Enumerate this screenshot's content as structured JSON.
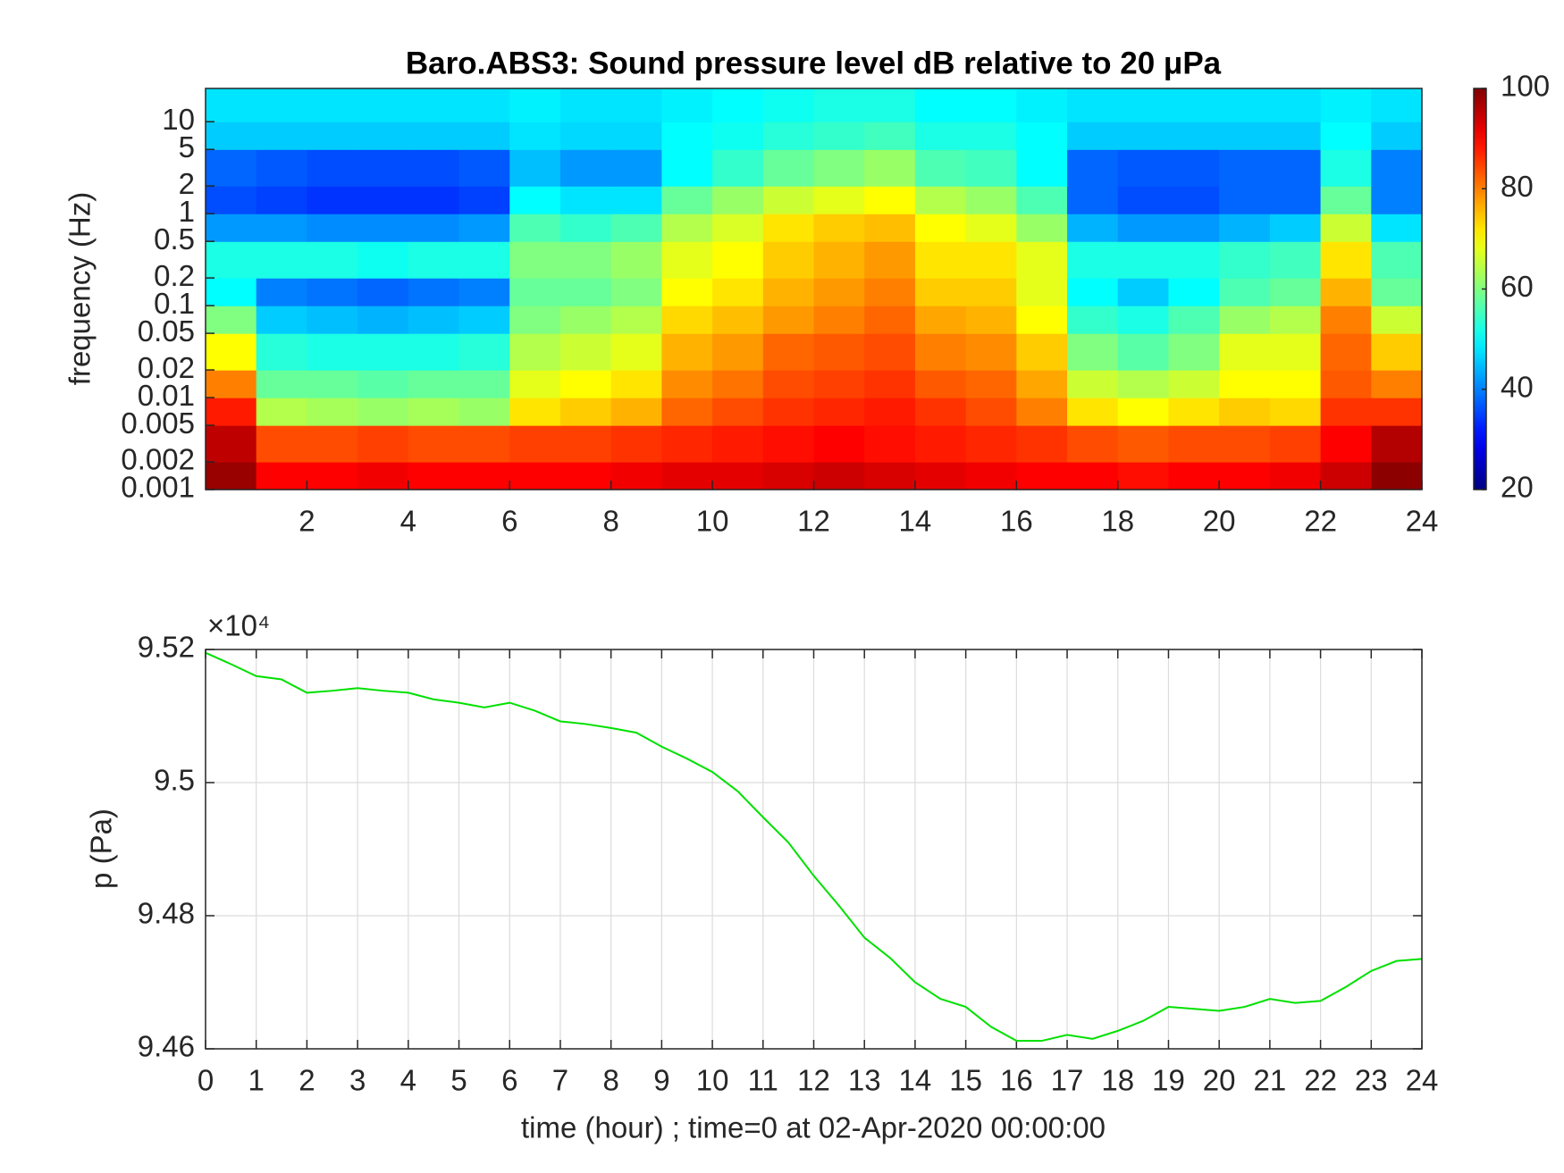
{
  "chart_data": [
    {
      "type": "heatmap",
      "title": "Baro.ABS3: Sound pressure level dB relative to 20 μPa",
      "ylabel": "frequency (Hz)",
      "xlim": [
        0,
        24
      ],
      "xticks": [
        2,
        4,
        6,
        8,
        10,
        12,
        14,
        16,
        18,
        20,
        22,
        24
      ],
      "ylim": [
        0.001,
        23
      ],
      "log_y": true,
      "yticks": [
        0.001,
        0.002,
        0.005,
        0.01,
        0.02,
        0.05,
        0.1,
        0.2,
        0.5,
        1,
        2,
        5,
        10
      ],
      "colormap": "jet",
      "clim": [
        20,
        100
      ],
      "colorbar_ticks": [
        20,
        40,
        60,
        80,
        100
      ],
      "x_bins": [
        0,
        1,
        2,
        3,
        4,
        5,
        6,
        7,
        8,
        9,
        10,
        11,
        12,
        13,
        14,
        15,
        16,
        17,
        18,
        19,
        20,
        21,
        22,
        23,
        24
      ],
      "y_bins": [
        0.001,
        0.002,
        0.005,
        0.01,
        0.02,
        0.05,
        0.1,
        0.2,
        0.5,
        1,
        2,
        5,
        10,
        23
      ],
      "z": [
        [
          98,
          90,
          90,
          91,
          90,
          90,
          90,
          90,
          91,
          92,
          92,
          93,
          94,
          93,
          92,
          91,
          90,
          90,
          89,
          90,
          90,
          91,
          94,
          99
        ],
        [
          95,
          84,
          84,
          85,
          84,
          84,
          85,
          85,
          86,
          87,
          88,
          89,
          90,
          89,
          88,
          87,
          86,
          84,
          83,
          84,
          84,
          85,
          90,
          96
        ],
        [
          88,
          64,
          63,
          62,
          63,
          62,
          72,
          74,
          76,
          82,
          84,
          86,
          87,
          88,
          86,
          84,
          80,
          72,
          70,
          72,
          74,
          73,
          86,
          86
        ],
        [
          80,
          58,
          58,
          57,
          58,
          58,
          68,
          70,
          72,
          79,
          81,
          84,
          85,
          86,
          83,
          82,
          77,
          66,
          64,
          66,
          70,
          70,
          83,
          80
        ],
        [
          70,
          53,
          52,
          52,
          52,
          53,
          64,
          66,
          68,
          76,
          78,
          82,
          83,
          84,
          80,
          79,
          74,
          60,
          57,
          60,
          68,
          68,
          82,
          74
        ],
        [
          60,
          46,
          45,
          44,
          45,
          46,
          60,
          62,
          64,
          73,
          75,
          78,
          80,
          82,
          77,
          76,
          70,
          54,
          52,
          56,
          62,
          64,
          80,
          66
        ],
        [
          50,
          40,
          39,
          38,
          39,
          40,
          58,
          58,
          60,
          70,
          72,
          76,
          78,
          80,
          74,
          74,
          68,
          50,
          46,
          50,
          56,
          58,
          76,
          58
        ],
        [
          52,
          52,
          52,
          51,
          52,
          52,
          60,
          60,
          62,
          68,
          70,
          74,
          76,
          78,
          72,
          72,
          68,
          52,
          52,
          52,
          54,
          55,
          72,
          56
        ],
        [
          42,
          42,
          41,
          41,
          41,
          42,
          56,
          54,
          56,
          64,
          67,
          72,
          74,
          75,
          70,
          68,
          62,
          44,
          42,
          42,
          44,
          46,
          66,
          48
        ],
        [
          36,
          35,
          34,
          34,
          34,
          35,
          50,
          48,
          48,
          58,
          62,
          66,
          68,
          70,
          64,
          62,
          56,
          38,
          36,
          36,
          38,
          38,
          58,
          40
        ],
        [
          38,
          37,
          36,
          36,
          36,
          37,
          45,
          42,
          42,
          50,
          54,
          58,
          60,
          62,
          56,
          55,
          50,
          38,
          37,
          37,
          38,
          38,
          52,
          40
        ],
        [
          46,
          46,
          46,
          46,
          46,
          46,
          48,
          47,
          47,
          50,
          51,
          53,
          54,
          55,
          52,
          52,
          50,
          46,
          46,
          46,
          46,
          46,
          50,
          46
        ],
        [
          48,
          48,
          48,
          48,
          48,
          48,
          49,
          48,
          48,
          49,
          50,
          51,
          52,
          52,
          50,
          50,
          49,
          48,
          48,
          48,
          48,
          48,
          49,
          48
        ]
      ]
    },
    {
      "type": "line",
      "xlabel": "time (hour) ; time=0 at 02-Apr-2020 00:00:00",
      "ylabel": "p (Pa)",
      "y_multiplier": "×10⁴",
      "xlim": [
        0,
        24
      ],
      "xticks": [
        0,
        1,
        2,
        3,
        4,
        5,
        6,
        7,
        8,
        9,
        10,
        11,
        12,
        13,
        14,
        15,
        16,
        17,
        18,
        19,
        20,
        21,
        22,
        23,
        24
      ],
      "ylim": [
        94600,
        95200
      ],
      "yticks": [
        {
          "value": 94600,
          "label": "9.46"
        },
        {
          "value": 94800,
          "label": "9.48"
        },
        {
          "value": 95000,
          "label": "9.5"
        },
        {
          "value": 95200,
          "label": "9.52"
        }
      ],
      "grid": true,
      "x": [
        0,
        0.5,
        1,
        1.5,
        2,
        2.5,
        3,
        3.5,
        4,
        4.5,
        5,
        5.5,
        6,
        6.5,
        7,
        7.5,
        8,
        8.5,
        9,
        9.5,
        10,
        10.5,
        11,
        11.5,
        12,
        12.5,
        13,
        13.5,
        14,
        14.5,
        15,
        15.5,
        16,
        16.5,
        17,
        17.5,
        18,
        18.5,
        19,
        19.5,
        20,
        20.5,
        21,
        21.5,
        22,
        22.5,
        23,
        23.5,
        24
      ],
      "series": [
        {
          "color": "#00e000",
          "values": [
            95195,
            95178,
            95160,
            95155,
            95135,
            95138,
            95142,
            95138,
            95135,
            95125,
            95120,
            95113,
            95120,
            95108,
            95092,
            95088,
            95082,
            95075,
            95054,
            95036,
            95016,
            94987,
            94948,
            94910,
            94860,
            94815,
            94767,
            94737,
            94700,
            94675,
            94663,
            94633,
            94612,
            94612,
            94621,
            94615,
            94627,
            94642,
            94663,
            94660,
            94657,
            94663,
            94675,
            94669,
            94672,
            94693,
            94717,
            94732,
            94735
          ]
        }
      ]
    }
  ]
}
